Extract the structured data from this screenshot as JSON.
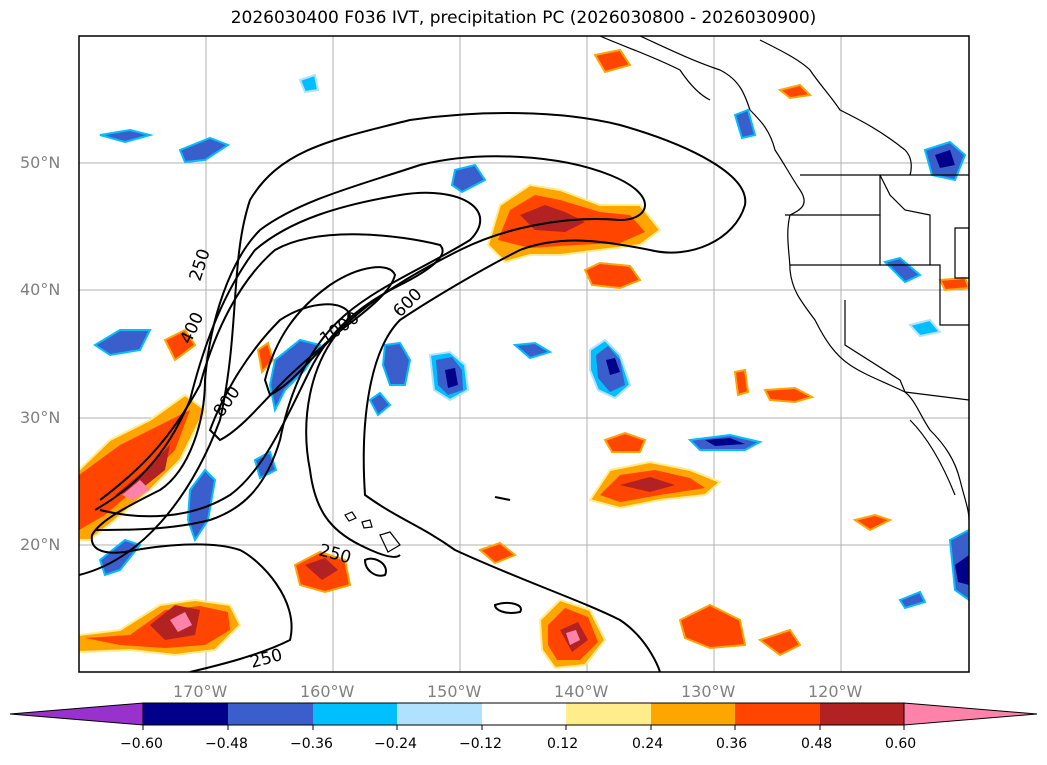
{
  "title": "2026030400 F036 IVT, precipitation PC (2026030800 - 2026030900)",
  "lat_labels": [
    "50°N",
    "40°N",
    "30°N",
    "20°N"
  ],
  "lon_labels": [
    "170°W",
    "160°W",
    "150°W",
    "140°W",
    "130°W",
    "120°W"
  ],
  "contour_labels": [
    "250",
    "400",
    "800",
    "1000",
    "600",
    "250",
    "250"
  ],
  "colorbar": {
    "ticks": [
      "−0.60",
      "−0.48",
      "−0.36",
      "−0.24",
      "−0.12",
      "0.12",
      "0.24",
      "0.36",
      "0.48",
      "0.60"
    ],
    "colors": [
      "#9932cc",
      "#00008b",
      "#3a5fcd",
      "#00bfff",
      "#b0e2ff",
      "#ffffff",
      "#ffec8b",
      "#ffa500",
      "#ff4500",
      "#b22222",
      "#ff82ab"
    ]
  }
}
